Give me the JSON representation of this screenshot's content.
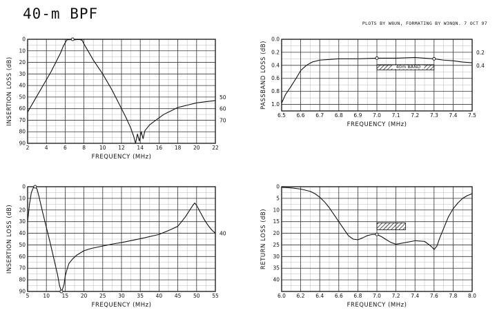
{
  "header": {
    "title": "40-m BPF",
    "credit": "PLOTS BY W8UN, FORMATING BY W3NQN.  7 OCT 97"
  },
  "chart_data": [
    {
      "id": "p1",
      "type": "line",
      "xlabel": "FREQUENCY (MHz)",
      "ylabel": "INSERTION LOSS (dB)",
      "xlim": [
        2,
        22
      ],
      "ylim": [
        90,
        0
      ],
      "xticks": [
        2,
        4,
        6,
        8,
        10,
        12,
        14,
        16,
        18,
        20,
        22
      ],
      "yticks": [
        0,
        10,
        20,
        30,
        40,
        50,
        60,
        70,
        80,
        90
      ],
      "right_labels": [
        {
          "y": 50,
          "text": "50"
        },
        {
          "y": 60,
          "text": "60"
        },
        {
          "y": 70,
          "text": "70"
        }
      ],
      "grid": true,
      "series": [
        {
          "values": [
            [
              2.0,
              63
            ],
            [
              2.5,
              56
            ],
            [
              3.0,
              49
            ],
            [
              3.5,
              42
            ],
            [
              4.0,
              35
            ],
            [
              4.5,
              28
            ],
            [
              5.0,
              20
            ],
            [
              5.5,
              12
            ],
            [
              5.8,
              6
            ],
            [
              6.0,
              3
            ],
            [
              6.2,
              0.5
            ],
            [
              6.5,
              0.3
            ],
            [
              6.8,
              0.4
            ],
            [
              7.0,
              0.5
            ],
            [
              7.2,
              0.3
            ],
            [
              7.5,
              0.2
            ],
            [
              7.8,
              0.8
            ],
            [
              8.0,
              4
            ],
            [
              8.5,
              11
            ],
            [
              9.0,
              18
            ],
            [
              9.5,
              24
            ],
            [
              10.0,
              30
            ],
            [
              10.5,
              37
            ],
            [
              11.0,
              44
            ],
            [
              11.5,
              52
            ],
            [
              12.0,
              60
            ],
            [
              12.5,
              68
            ],
            [
              13.0,
              77
            ],
            [
              13.3,
              84
            ],
            [
              13.5,
              90
            ],
            [
              13.7,
              82
            ],
            [
              13.9,
              88
            ],
            [
              14.1,
              80
            ],
            [
              14.3,
              86
            ],
            [
              14.5,
              79
            ],
            [
              15.0,
              74
            ],
            [
              15.5,
              71
            ],
            [
              16.0,
              68
            ],
            [
              16.5,
              65
            ],
            [
              17.0,
              63
            ],
            [
              17.5,
              61
            ],
            [
              18.0,
              59
            ],
            [
              18.5,
              58
            ],
            [
              19.0,
              57
            ],
            [
              20.0,
              55
            ],
            [
              21.0,
              54
            ],
            [
              22.0,
              53
            ]
          ]
        }
      ],
      "markers": [
        {
          "x": 6.8,
          "y": 0
        }
      ]
    },
    {
      "id": "p2",
      "type": "line",
      "xlabel": "FREQUENCY (MHz)",
      "ylabel": "PASSBAND LOSS (dB)",
      "xlim": [
        6.5,
        7.5
      ],
      "ylim": [
        1.1,
        0
      ],
      "xticks": [
        6.5,
        6.6,
        6.7,
        6.8,
        6.9,
        7.0,
        7.1,
        7.2,
        7.3,
        7.4,
        7.5
      ],
      "yticks": [
        0,
        0.2,
        0.4,
        0.6,
        0.8,
        1.0
      ],
      "right_labels": [
        {
          "y": 0.2,
          "text": "0.2"
        },
        {
          "y": 0.4,
          "text": "0.4"
        }
      ],
      "grid": true,
      "band": {
        "x1": 7.0,
        "x2": 7.3,
        "y1": 0.39,
        "y2": 0.47,
        "label": "40m BAND"
      },
      "series": [
        {
          "values": [
            [
              6.5,
              0.98
            ],
            [
              6.52,
              0.85
            ],
            [
              6.55,
              0.72
            ],
            [
              6.58,
              0.58
            ],
            [
              6.6,
              0.48
            ],
            [
              6.63,
              0.4
            ],
            [
              6.66,
              0.35
            ],
            [
              6.7,
              0.32
            ],
            [
              6.75,
              0.31
            ],
            [
              6.8,
              0.3
            ],
            [
              6.9,
              0.3
            ],
            [
              7.0,
              0.29
            ],
            [
              7.1,
              0.29
            ],
            [
              7.2,
              0.28
            ],
            [
              7.25,
              0.29
            ],
            [
              7.3,
              0.3
            ],
            [
              7.35,
              0.32
            ],
            [
              7.4,
              0.33
            ],
            [
              7.45,
              0.35
            ],
            [
              7.5,
              0.36
            ]
          ]
        }
      ],
      "markers": [
        {
          "x": 7.0,
          "y": 0.29
        },
        {
          "x": 7.3,
          "y": 0.3
        }
      ]
    },
    {
      "id": "p3",
      "type": "line",
      "xlabel": "FREQUENCY (MHz)",
      "ylabel": "INSERTION LOSS (dB)",
      "xlim": [
        5,
        55
      ],
      "ylim": [
        90,
        0
      ],
      "xticks": [
        5,
        10,
        15,
        20,
        25,
        30,
        35,
        40,
        45,
        50,
        55
      ],
      "yticks": [
        0,
        10,
        20,
        30,
        40,
        50,
        60,
        70,
        80,
        90
      ],
      "right_labels": [
        {
          "y": 40,
          "text": "40"
        }
      ],
      "grid": true,
      "series": [
        {
          "values": [
            [
              5.0,
              30
            ],
            [
              5.5,
              15
            ],
            [
              6.0,
              5
            ],
            [
              6.5,
              1
            ],
            [
              7.0,
              0.3
            ],
            [
              7.5,
              2
            ],
            [
              8.0,
              8
            ],
            [
              9.0,
              22
            ],
            [
              10.0,
              35
            ],
            [
              11.0,
              48
            ],
            [
              12.0,
              62
            ],
            [
              13.0,
              76
            ],
            [
              13.5,
              85
            ],
            [
              14.0,
              90
            ],
            [
              14.3,
              88
            ],
            [
              14.7,
              84
            ],
            [
              15.0,
              77
            ],
            [
              15.5,
              71
            ],
            [
              16.0,
              66
            ],
            [
              17.0,
              62
            ],
            [
              18.0,
              59
            ],
            [
              20.0,
              55
            ],
            [
              22.0,
              53
            ],
            [
              25.0,
              51
            ],
            [
              28.0,
              49
            ],
            [
              30.0,
              48
            ],
            [
              33.0,
              46
            ],
            [
              36.0,
              44
            ],
            [
              40.0,
              41
            ],
            [
              43.0,
              37
            ],
            [
              45.0,
              34
            ],
            [
              46.0,
              30
            ],
            [
              47.0,
              26
            ],
            [
              48.0,
              21
            ],
            [
              49.0,
              16
            ],
            [
              49.5,
              14
            ],
            [
              50.0,
              16
            ],
            [
              51.0,
              22
            ],
            [
              52.0,
              28
            ],
            [
              53.0,
              33
            ],
            [
              54.0,
              37
            ],
            [
              55.0,
              40
            ]
          ]
        }
      ],
      "markers": [
        {
          "x": 7.0,
          "y": 0
        },
        {
          "x": 14.0,
          "y": 90
        }
      ]
    },
    {
      "id": "p4",
      "type": "line",
      "xlabel": "FREQUENCY (MHz)",
      "ylabel": "RETURN LOSS (dB)",
      "xlim": [
        6.0,
        8.0
      ],
      "ylim": [
        45,
        0
      ],
      "xticks": [
        6.0,
        6.2,
        6.4,
        6.6,
        6.8,
        7.0,
        7.2,
        7.4,
        7.6,
        7.8,
        8.0
      ],
      "yticks": [
        0,
        5,
        10,
        15,
        20,
        25,
        30,
        35,
        40
      ],
      "grid": true,
      "band": {
        "x1": 7.0,
        "x2": 7.3,
        "y1": 15.5,
        "y2": 18.5,
        "label": ""
      },
      "series": [
        {
          "values": [
            [
              6.0,
              0.3
            ],
            [
              6.1,
              0.5
            ],
            [
              6.2,
              1.0
            ],
            [
              6.3,
              2.0
            ],
            [
              6.35,
              3.0
            ],
            [
              6.4,
              4.5
            ],
            [
              6.45,
              6.5
            ],
            [
              6.5,
              9.0
            ],
            [
              6.55,
              12
            ],
            [
              6.6,
              15
            ],
            [
              6.65,
              18
            ],
            [
              6.7,
              21
            ],
            [
              6.75,
              22.5
            ],
            [
              6.8,
              22.8
            ],
            [
              6.85,
              22.0
            ],
            [
              6.9,
              21.0
            ],
            [
              6.95,
              20.5
            ],
            [
              7.0,
              20.5
            ],
            [
              7.05,
              21.5
            ],
            [
              7.1,
              22.8
            ],
            [
              7.15,
              24.0
            ],
            [
              7.2,
              24.7
            ],
            [
              7.3,
              24.0
            ],
            [
              7.4,
              23.2
            ],
            [
              7.5,
              23.5
            ],
            [
              7.55,
              25.0
            ],
            [
              7.58,
              26.0
            ],
            [
              7.6,
              27.0
            ],
            [
              7.63,
              25.5
            ],
            [
              7.66,
              22
            ],
            [
              7.7,
              18
            ],
            [
              7.75,
              13
            ],
            [
              7.8,
              9.5
            ],
            [
              7.85,
              7.0
            ],
            [
              7.9,
              5.0
            ],
            [
              7.95,
              3.8
            ],
            [
              8.0,
              3.0
            ]
          ]
        }
      ],
      "markers": [
        {
          "x": 7.0,
          "y": 20.5
        }
      ]
    }
  ]
}
